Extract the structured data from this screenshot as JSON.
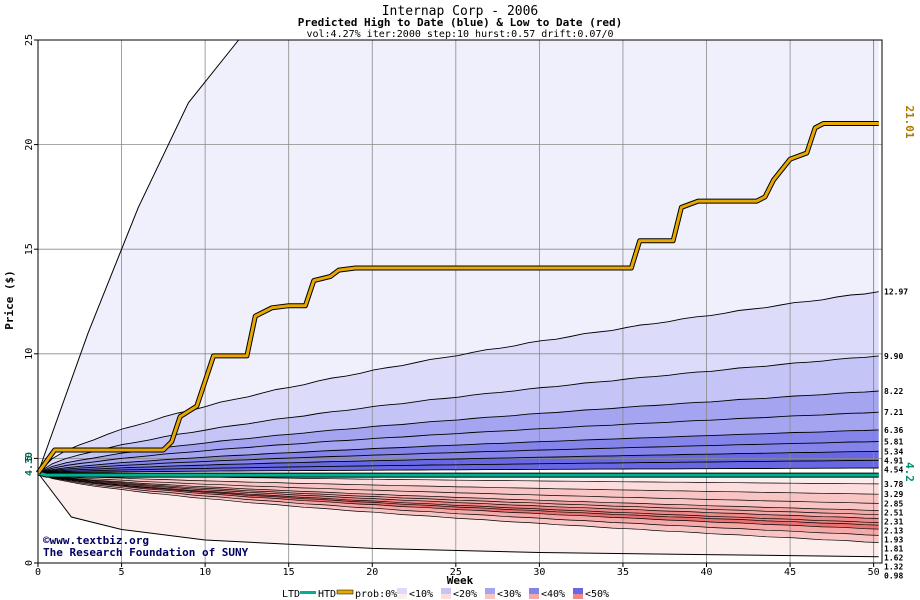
{
  "chart_data": {
    "type": "area",
    "title": "Internap Corp - 2006",
    "subtitle": "Predicted High to Date (blue) &  Low to Date (red)",
    "params": "vol:4.27% iter:2000 step:10 hurst:0.57 drift:0.07/0",
    "xlabel": "Week",
    "ylabel": "Price ($)",
    "xlim": [
      0,
      50.5
    ],
    "ylim": [
      0,
      25
    ],
    "xticks": [
      0,
      5,
      10,
      15,
      20,
      25,
      30,
      35,
      40,
      45,
      50
    ],
    "yticks": [
      0,
      5,
      10,
      15,
      20,
      25
    ],
    "grid": true,
    "start_price": 4.3,
    "start_label": "4.30",
    "htd_last": 21.01,
    "htd_last_label": "21.01",
    "ltd_last": 4.2,
    "ltd_last_label": "4.2",
    "band_colors": [
      "#f0f0fc",
      "#dcdcfa",
      "#c4c4f6",
      "#a4a4f0",
      "#8484ea",
      "#6868e6"
    ],
    "red_band_colors": [
      "#fdeeee",
      "#fcdcdc",
      "#f9c4c4",
      "#f5a8a8",
      "#f08888",
      "#ec7070"
    ],
    "high_curves": [
      {
        "label": "12.97",
        "final": 12.97
      },
      {
        "label": "9.90",
        "final": 9.9
      },
      {
        "label": "8.22",
        "final": 8.22
      },
      {
        "label": "7.21",
        "final": 7.21
      },
      {
        "label": "6.36",
        "final": 6.36
      },
      {
        "label": "5.81",
        "final": 5.81
      },
      {
        "label": "5.34",
        "final": 5.34
      },
      {
        "label": "4.91",
        "final": 4.91
      },
      {
        "label": "4.54",
        "final": 4.54
      }
    ],
    "low_curves": [
      {
        "label": "3.78",
        "final": 3.78
      },
      {
        "label": "3.29",
        "final": 3.29
      },
      {
        "label": "2.85",
        "final": 2.85
      },
      {
        "label": "2.51",
        "final": 2.51
      },
      {
        "label": "2.31",
        "final": 2.31
      },
      {
        "label": "2.13",
        "final": 2.13
      },
      {
        "label": "1.93",
        "final": 1.93
      },
      {
        "label": "1.81",
        "final": 1.81
      },
      {
        "label": "1.62",
        "final": 1.62
      },
      {
        "label": "1.32",
        "final": 1.32
      },
      {
        "label": "0.98",
        "final": 0.98
      }
    ],
    "high_to_date": {
      "name": "HTD",
      "color": "#e8a800",
      "points": [
        [
          0,
          4.3
        ],
        [
          1,
          5.4
        ],
        [
          7.5,
          5.4
        ],
        [
          8,
          5.8
        ],
        [
          8.5,
          7.0
        ],
        [
          9.5,
          7.5
        ],
        [
          10.5,
          9.9
        ],
        [
          12.5,
          9.9
        ],
        [
          13,
          11.8
        ],
        [
          14,
          12.2
        ],
        [
          15,
          12.3
        ],
        [
          16,
          12.3
        ],
        [
          16.5,
          13.5
        ],
        [
          17.5,
          13.7
        ],
        [
          18,
          14.0
        ],
        [
          19,
          14.1
        ],
        [
          35.5,
          14.1
        ],
        [
          36,
          15.4
        ],
        [
          38,
          15.4
        ],
        [
          38.5,
          17.0
        ],
        [
          39.5,
          17.3
        ],
        [
          43,
          17.3
        ],
        [
          43.5,
          17.5
        ],
        [
          44,
          18.3
        ],
        [
          45,
          19.3
        ],
        [
          46,
          19.6
        ],
        [
          46.5,
          20.8
        ],
        [
          47,
          21.01
        ],
        [
          50.3,
          21.01
        ]
      ]
    },
    "low_to_date": {
      "name": "LTD",
      "color": "#00b090",
      "points": [
        [
          0,
          4.3
        ],
        [
          0.5,
          4.2
        ],
        [
          50.3,
          4.2
        ]
      ]
    },
    "upper_envelope": {
      "points": [
        [
          0,
          4.3
        ],
        [
          3,
          11
        ],
        [
          6,
          17
        ],
        [
          9,
          22
        ],
        [
          12,
          25
        ]
      ]
    },
    "lower_envelope": {
      "points": [
        [
          0,
          4.3
        ],
        [
          2,
          2.2
        ],
        [
          5,
          1.6
        ],
        [
          10,
          1.1
        ],
        [
          20,
          0.7
        ],
        [
          30,
          0.5
        ],
        [
          40,
          0.4
        ],
        [
          50.3,
          0.3
        ]
      ]
    },
    "credit_line1": "©www.textbiz.org",
    "credit_line2": "The Research Foundation of SUNY",
    "legend": {
      "ltd": "LTD",
      "htd": "HTD",
      "prob_prefix": "prob:0%",
      "items": [
        "<10%",
        "<20%",
        "<30%",
        "<40%",
        "<50%"
      ],
      "colors": [
        "#f0f0fc",
        "#dcdcfa",
        "#c4c4f6",
        "#a4a4f0",
        "#8484ea",
        "#6868e6"
      ],
      "red_colors": [
        "#fdeeee",
        "#fcdcdc",
        "#f9c4c4",
        "#f5a8a8",
        "#f08888"
      ]
    }
  }
}
